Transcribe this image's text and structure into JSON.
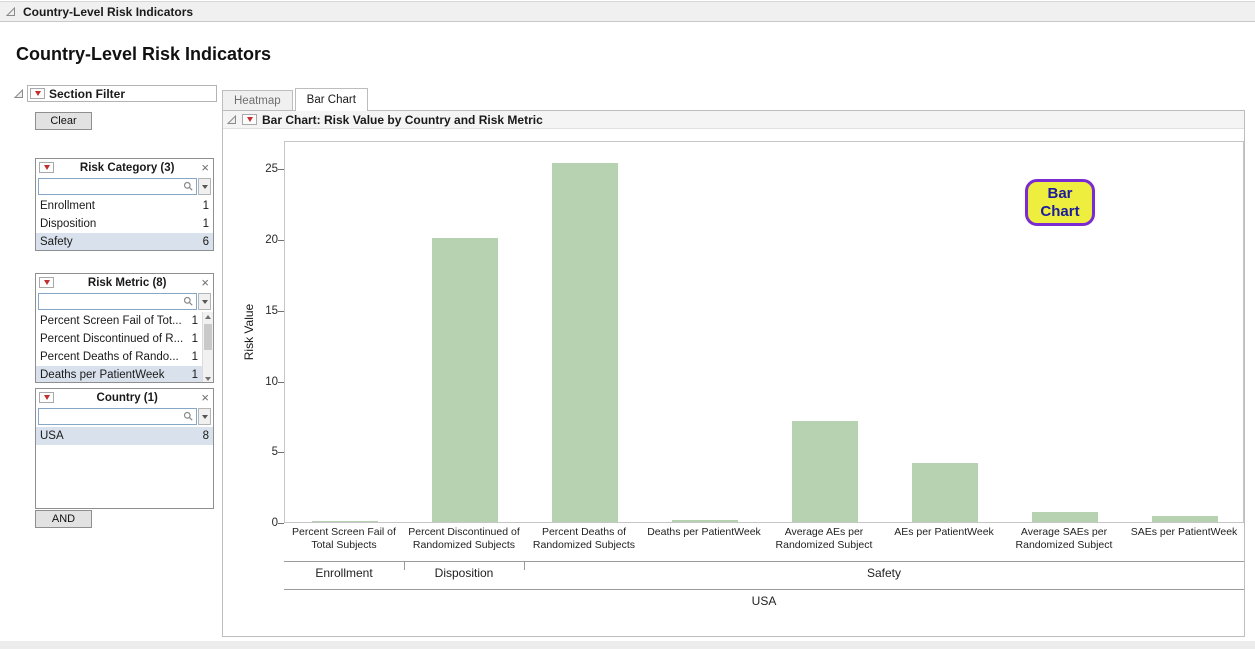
{
  "window": {
    "outline_title": "Country-Level Risk Indicators"
  },
  "page": {
    "title": "Country-Level Risk Indicators"
  },
  "sidebar": {
    "title": "Section Filter",
    "clear_button": "Clear",
    "and_button": "AND",
    "filters": [
      {
        "title": "Risk Category (3)",
        "has_scrollbar": false,
        "items": [
          {
            "label": "Enrollment",
            "count": "1",
            "selected": false
          },
          {
            "label": "Disposition",
            "count": "1",
            "selected": false
          },
          {
            "label": "Safety",
            "count": "6",
            "selected": true
          }
        ]
      },
      {
        "title": "Risk Metric (8)",
        "has_scrollbar": true,
        "items": [
          {
            "label": "Percent Screen Fail of Tot...",
            "count": "1",
            "selected": false
          },
          {
            "label": "Percent Discontinued of R...",
            "count": "1",
            "selected": false
          },
          {
            "label": "Percent Deaths of Rando...",
            "count": "1",
            "selected": false
          },
          {
            "label": "Deaths per PatientWeek",
            "count": "1",
            "selected": true
          }
        ]
      },
      {
        "title": "Country (1)",
        "has_scrollbar": false,
        "items": [
          {
            "label": "USA",
            "count": "8",
            "selected": true
          }
        ]
      }
    ]
  },
  "tabs": [
    {
      "label": "Heatmap",
      "active": false
    },
    {
      "label": "Bar Chart",
      "active": true
    }
  ],
  "panel": {
    "title": "Bar Chart: Risk Value by Country and Risk Metric"
  },
  "chart_data": {
    "type": "bar",
    "title": "Bar Chart: Risk Value by Country and Risk Metric",
    "ylabel": "Risk Value",
    "xlabel": "USA",
    "ylim": [
      0,
      27
    ],
    "yticks": [
      0,
      5,
      10,
      15,
      20,
      25
    ],
    "grid": false,
    "legend": "none",
    "bar_color": "#b7d2b0",
    "categories": [
      "Percent Screen Fail of Total Subjects",
      "Percent Discontinued of Randomized Subjects",
      "Percent Deaths of Randomized Subjects",
      "Deaths per PatientWeek",
      "Average AEs per Randomized Subject",
      "AEs per PatientWeek",
      "Average SAEs per Randomized Subject",
      "SAEs per PatientWeek"
    ],
    "values": [
      0.05,
      20.2,
      25.5,
      0.15,
      7.2,
      4.2,
      0.7,
      0.4
    ],
    "groups": [
      {
        "label": "Enrollment",
        "span": 1
      },
      {
        "label": "Disposition",
        "span": 1
      },
      {
        "label": "Safety",
        "span": 6
      }
    ],
    "annotation": {
      "lines": [
        "Bar",
        "Chart"
      ],
      "fill": "#eeee3e",
      "border": "#7a2bd1",
      "text_color": "#1c1c9e"
    }
  }
}
